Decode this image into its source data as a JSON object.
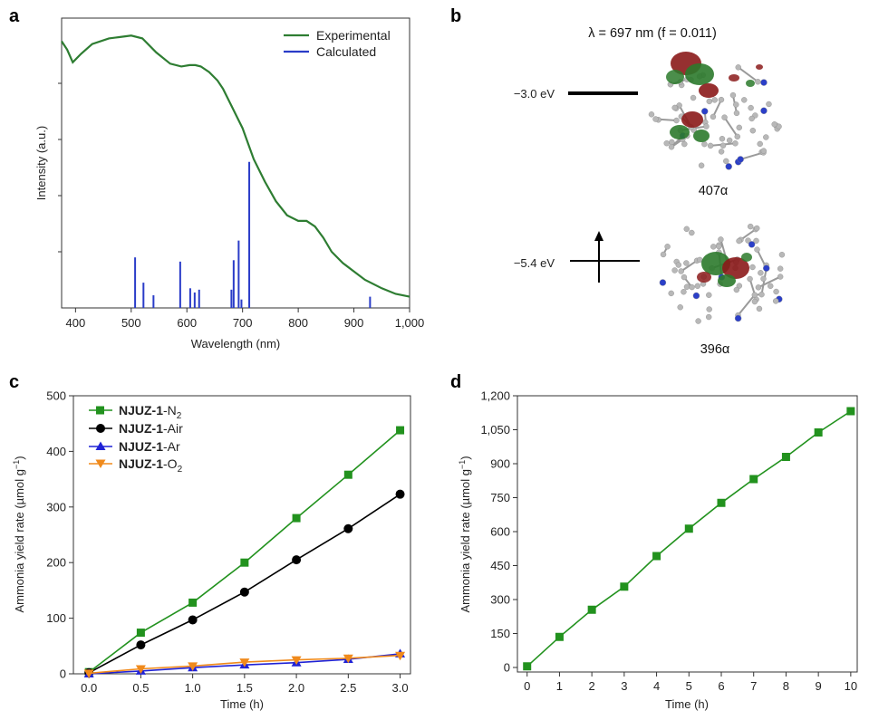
{
  "panels": {
    "a": "a",
    "b": "b",
    "c": "c",
    "d": "d"
  },
  "chart_data": [
    {
      "id": "a",
      "type": "line",
      "xlabel": "Wavelength (nm)",
      "ylabel": "Intensity (a.u.)",
      "xlim": [
        375,
        1000
      ],
      "ylim": [
        0,
        1
      ],
      "xticks": [
        400,
        500,
        600,
        700,
        800,
        900,
        1000
      ],
      "xticklabels": [
        "400",
        "500",
        "600",
        "700",
        "800",
        "900",
        "1,000"
      ],
      "legend": [
        {
          "label": "Experimental",
          "color": "#2e7d32"
        },
        {
          "label": "Calculated",
          "color": "#2a3cc8"
        }
      ],
      "experimental": {
        "x": [
          375,
          385,
          395,
          410,
          430,
          460,
          480,
          500,
          520,
          545,
          570,
          590,
          605,
          615,
          625,
          640,
          655,
          665,
          680,
          700,
          720,
          740,
          760,
          780,
          800,
          815,
          830,
          845,
          860,
          880,
          900,
          920,
          950,
          975,
          1000
        ],
        "y": [
          0.95,
          0.92,
          0.875,
          0.905,
          0.94,
          0.96,
          0.965,
          0.97,
          0.96,
          0.91,
          0.87,
          0.86,
          0.865,
          0.865,
          0.86,
          0.84,
          0.81,
          0.78,
          0.72,
          0.64,
          0.53,
          0.45,
          0.38,
          0.33,
          0.31,
          0.31,
          0.29,
          0.25,
          0.2,
          0.16,
          0.13,
          0.1,
          0.07,
          0.05,
          0.04
        ]
      },
      "calculated": {
        "x": [
          507,
          522,
          540,
          588,
          606,
          614,
          622,
          680,
          684,
          693,
          698,
          712,
          929
        ],
        "y": [
          0.18,
          0.09,
          0.045,
          0.165,
          0.07,
          0.055,
          0.065,
          0.065,
          0.17,
          0.24,
          0.03,
          0.52,
          0.04
        ]
      }
    },
    {
      "id": "b",
      "type": "diagram",
      "title": "λ = 697 nm (f = 0.011)",
      "levels": [
        {
          "energy": "−3.0 eV",
          "orbital": "407α",
          "occupied": false
        },
        {
          "energy": "−5.4 eV",
          "orbital": "396α",
          "occupied": true
        }
      ]
    },
    {
      "id": "c",
      "type": "line",
      "xlabel": "Time (h)",
      "ylabel": "Ammonia yield rate (µmol g",
      "ylabel_sup": "−1",
      "ylabel_end": ")",
      "xlim": [
        -0.15,
        3.1
      ],
      "ylim": [
        0,
        500
      ],
      "xticks": [
        0,
        0.5,
        1,
        1.5,
        2,
        2.5,
        3
      ],
      "xticklabels": [
        "0.0",
        "0.5",
        "1.0",
        "1.5",
        "2.0",
        "2.5",
        "3.0"
      ],
      "yticks": [
        0,
        100,
        200,
        300,
        400,
        500
      ],
      "yticklabels": [
        "0",
        "100",
        "200",
        "300",
        "400",
        "500"
      ],
      "series": [
        {
          "name": "NJUZ-1",
          "suffix": "-N",
          "sub": "2",
          "color": "#22921e",
          "marker": "square",
          "x": [
            0,
            0.5,
            1,
            1.5,
            2,
            2.5,
            3
          ],
          "y": [
            3,
            74,
            128,
            200,
            280,
            358,
            438
          ]
        },
        {
          "name": "NJUZ-1",
          "suffix": "-Air",
          "sub": "",
          "color": "#000000",
          "marker": "circle",
          "x": [
            0,
            0.5,
            1,
            1.5,
            2,
            2.5,
            3
          ],
          "y": [
            2,
            52,
            97,
            147,
            205,
            261,
            323
          ]
        },
        {
          "name": "NJUZ-1",
          "suffix": "-Ar",
          "sub": "",
          "color": "#1f22d6",
          "marker": "triangle-up",
          "x": [
            0,
            0.5,
            1,
            1.5,
            2,
            2.5,
            3
          ],
          "y": [
            0,
            5,
            11,
            16,
            20,
            26,
            36
          ]
        },
        {
          "name": "NJUZ-1",
          "suffix": "-O",
          "sub": "2",
          "color": "#f08a1c",
          "marker": "triangle-down",
          "x": [
            0,
            0.5,
            1,
            1.5,
            2,
            2.5,
            3
          ],
          "y": [
            1,
            9,
            14,
            21,
            25,
            28,
            33
          ]
        }
      ]
    },
    {
      "id": "d",
      "type": "line",
      "xlabel": "Time (h)",
      "ylabel": "Ammonia yield rate (µmol g",
      "ylabel_sup": "−1",
      "ylabel_end": ")",
      "xlim": [
        -0.3,
        10.2
      ],
      "ylim": [
        -20,
        1200
      ],
      "xticks": [
        0,
        1,
        2,
        3,
        4,
        5,
        6,
        7,
        8,
        9,
        10
      ],
      "xticklabels": [
        "0",
        "1",
        "2",
        "3",
        "4",
        "5",
        "6",
        "7",
        "8",
        "9",
        "10"
      ],
      "yticks": [
        0,
        150,
        300,
        450,
        600,
        750,
        900,
        1050,
        1200
      ],
      "yticklabels": [
        "0",
        "150",
        "300",
        "450",
        "600",
        "750",
        "900",
        "1,050",
        "1,200"
      ],
      "series": [
        {
          "name": "NJUZ-1-N2",
          "color": "#22921e",
          "marker": "square",
          "x": [
            0,
            1,
            2,
            3,
            4,
            5,
            6,
            7,
            8,
            9,
            10
          ],
          "y": [
            5,
            135,
            255,
            357,
            492,
            613,
            727,
            832,
            930,
            1038,
            1132
          ]
        }
      ]
    }
  ]
}
